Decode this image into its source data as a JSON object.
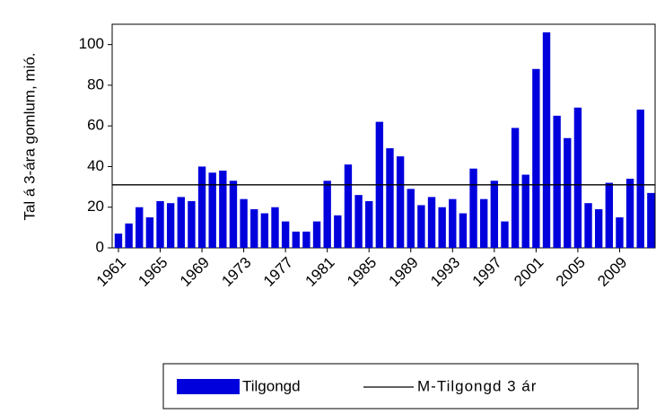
{
  "chart_data": {
    "type": "bar",
    "y_label": "Tal á 3-ára gomlum, mió.",
    "x": [
      1961,
      1962,
      1963,
      1964,
      1965,
      1966,
      1967,
      1968,
      1969,
      1970,
      1971,
      1972,
      1973,
      1974,
      1975,
      1976,
      1977,
      1978,
      1979,
      1980,
      1981,
      1982,
      1983,
      1984,
      1985,
      1986,
      1987,
      1988,
      1989,
      1990,
      1991,
      1992,
      1993,
      1994,
      1995,
      1996,
      1997,
      1998,
      1999,
      2000,
      2001,
      2002,
      2003,
      2004,
      2005,
      2006,
      2007,
      2008,
      2009,
      2010,
      2011,
      2012
    ],
    "series": [
      {
        "name": "Tilgongd",
        "color": "#0000dd",
        "values": [
          7,
          12,
          20,
          15,
          23,
          22,
          25,
          23,
          40,
          37,
          38,
          33,
          24,
          19,
          17,
          20,
          13,
          8,
          8,
          13,
          33,
          16,
          41,
          26,
          23,
          62,
          49,
          45,
          29,
          21,
          25,
          20,
          24,
          17,
          39,
          24,
          33,
          13,
          59,
          36,
          88,
          106,
          65,
          54,
          69,
          22,
          19,
          32,
          15,
          34,
          68,
          27
        ]
      }
    ],
    "reference_line": {
      "name": "M-Tilgongd 3 ár",
      "color": "#000000",
      "value": 31
    },
    "xlim": [
      1960.4,
      2012.4
    ],
    "xticks": [
      1961,
      1965,
      1969,
      1973,
      1977,
      1981,
      1985,
      1989,
      1993,
      1997,
      2001,
      2005,
      2009
    ],
    "ylim": [
      0,
      110
    ],
    "yticks": [
      0,
      20,
      40,
      60,
      80,
      100
    ]
  }
}
